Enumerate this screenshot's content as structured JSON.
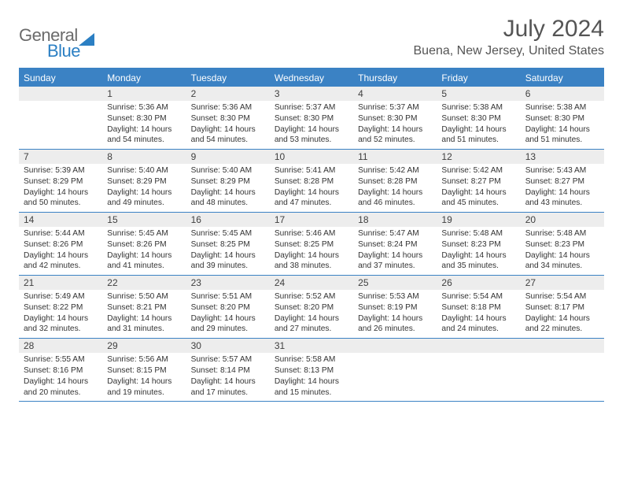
{
  "brand": {
    "g": "General",
    "b": "Blue"
  },
  "title": "July 2024",
  "location": "Buena, New Jersey, United States",
  "header_bg": "#3b82c4",
  "weekdays": [
    "Sunday",
    "Monday",
    "Tuesday",
    "Wednesday",
    "Thursday",
    "Friday",
    "Saturday"
  ],
  "grid": {
    "first_day_index": 1,
    "days_in_month": 31
  },
  "days": {
    "1": {
      "sunrise": "5:36 AM",
      "sunset": "8:30 PM",
      "daylight": "14 hours and 54 minutes."
    },
    "2": {
      "sunrise": "5:36 AM",
      "sunset": "8:30 PM",
      "daylight": "14 hours and 54 minutes."
    },
    "3": {
      "sunrise": "5:37 AM",
      "sunset": "8:30 PM",
      "daylight": "14 hours and 53 minutes."
    },
    "4": {
      "sunrise": "5:37 AM",
      "sunset": "8:30 PM",
      "daylight": "14 hours and 52 minutes."
    },
    "5": {
      "sunrise": "5:38 AM",
      "sunset": "8:30 PM",
      "daylight": "14 hours and 51 minutes."
    },
    "6": {
      "sunrise": "5:38 AM",
      "sunset": "8:30 PM",
      "daylight": "14 hours and 51 minutes."
    },
    "7": {
      "sunrise": "5:39 AM",
      "sunset": "8:29 PM",
      "daylight": "14 hours and 50 minutes."
    },
    "8": {
      "sunrise": "5:40 AM",
      "sunset": "8:29 PM",
      "daylight": "14 hours and 49 minutes."
    },
    "9": {
      "sunrise": "5:40 AM",
      "sunset": "8:29 PM",
      "daylight": "14 hours and 48 minutes."
    },
    "10": {
      "sunrise": "5:41 AM",
      "sunset": "8:28 PM",
      "daylight": "14 hours and 47 minutes."
    },
    "11": {
      "sunrise": "5:42 AM",
      "sunset": "8:28 PM",
      "daylight": "14 hours and 46 minutes."
    },
    "12": {
      "sunrise": "5:42 AM",
      "sunset": "8:27 PM",
      "daylight": "14 hours and 45 minutes."
    },
    "13": {
      "sunrise": "5:43 AM",
      "sunset": "8:27 PM",
      "daylight": "14 hours and 43 minutes."
    },
    "14": {
      "sunrise": "5:44 AM",
      "sunset": "8:26 PM",
      "daylight": "14 hours and 42 minutes."
    },
    "15": {
      "sunrise": "5:45 AM",
      "sunset": "8:26 PM",
      "daylight": "14 hours and 41 minutes."
    },
    "16": {
      "sunrise": "5:45 AM",
      "sunset": "8:25 PM",
      "daylight": "14 hours and 39 minutes."
    },
    "17": {
      "sunrise": "5:46 AM",
      "sunset": "8:25 PM",
      "daylight": "14 hours and 38 minutes."
    },
    "18": {
      "sunrise": "5:47 AM",
      "sunset": "8:24 PM",
      "daylight": "14 hours and 37 minutes."
    },
    "19": {
      "sunrise": "5:48 AM",
      "sunset": "8:23 PM",
      "daylight": "14 hours and 35 minutes."
    },
    "20": {
      "sunrise": "5:48 AM",
      "sunset": "8:23 PM",
      "daylight": "14 hours and 34 minutes."
    },
    "21": {
      "sunrise": "5:49 AM",
      "sunset": "8:22 PM",
      "daylight": "14 hours and 32 minutes."
    },
    "22": {
      "sunrise": "5:50 AM",
      "sunset": "8:21 PM",
      "daylight": "14 hours and 31 minutes."
    },
    "23": {
      "sunrise": "5:51 AM",
      "sunset": "8:20 PM",
      "daylight": "14 hours and 29 minutes."
    },
    "24": {
      "sunrise": "5:52 AM",
      "sunset": "8:20 PM",
      "daylight": "14 hours and 27 minutes."
    },
    "25": {
      "sunrise": "5:53 AM",
      "sunset": "8:19 PM",
      "daylight": "14 hours and 26 minutes."
    },
    "26": {
      "sunrise": "5:54 AM",
      "sunset": "8:18 PM",
      "daylight": "14 hours and 24 minutes."
    },
    "27": {
      "sunrise": "5:54 AM",
      "sunset": "8:17 PM",
      "daylight": "14 hours and 22 minutes."
    },
    "28": {
      "sunrise": "5:55 AM",
      "sunset": "8:16 PM",
      "daylight": "14 hours and 20 minutes."
    },
    "29": {
      "sunrise": "5:56 AM",
      "sunset": "8:15 PM",
      "daylight": "14 hours and 19 minutes."
    },
    "30": {
      "sunrise": "5:57 AM",
      "sunset": "8:14 PM",
      "daylight": "14 hours and 17 minutes."
    },
    "31": {
      "sunrise": "5:58 AM",
      "sunset": "8:13 PM",
      "daylight": "14 hours and 15 minutes."
    }
  },
  "labels": {
    "sunrise": "Sunrise:",
    "sunset": "Sunset:",
    "daylight": "Daylight:"
  }
}
